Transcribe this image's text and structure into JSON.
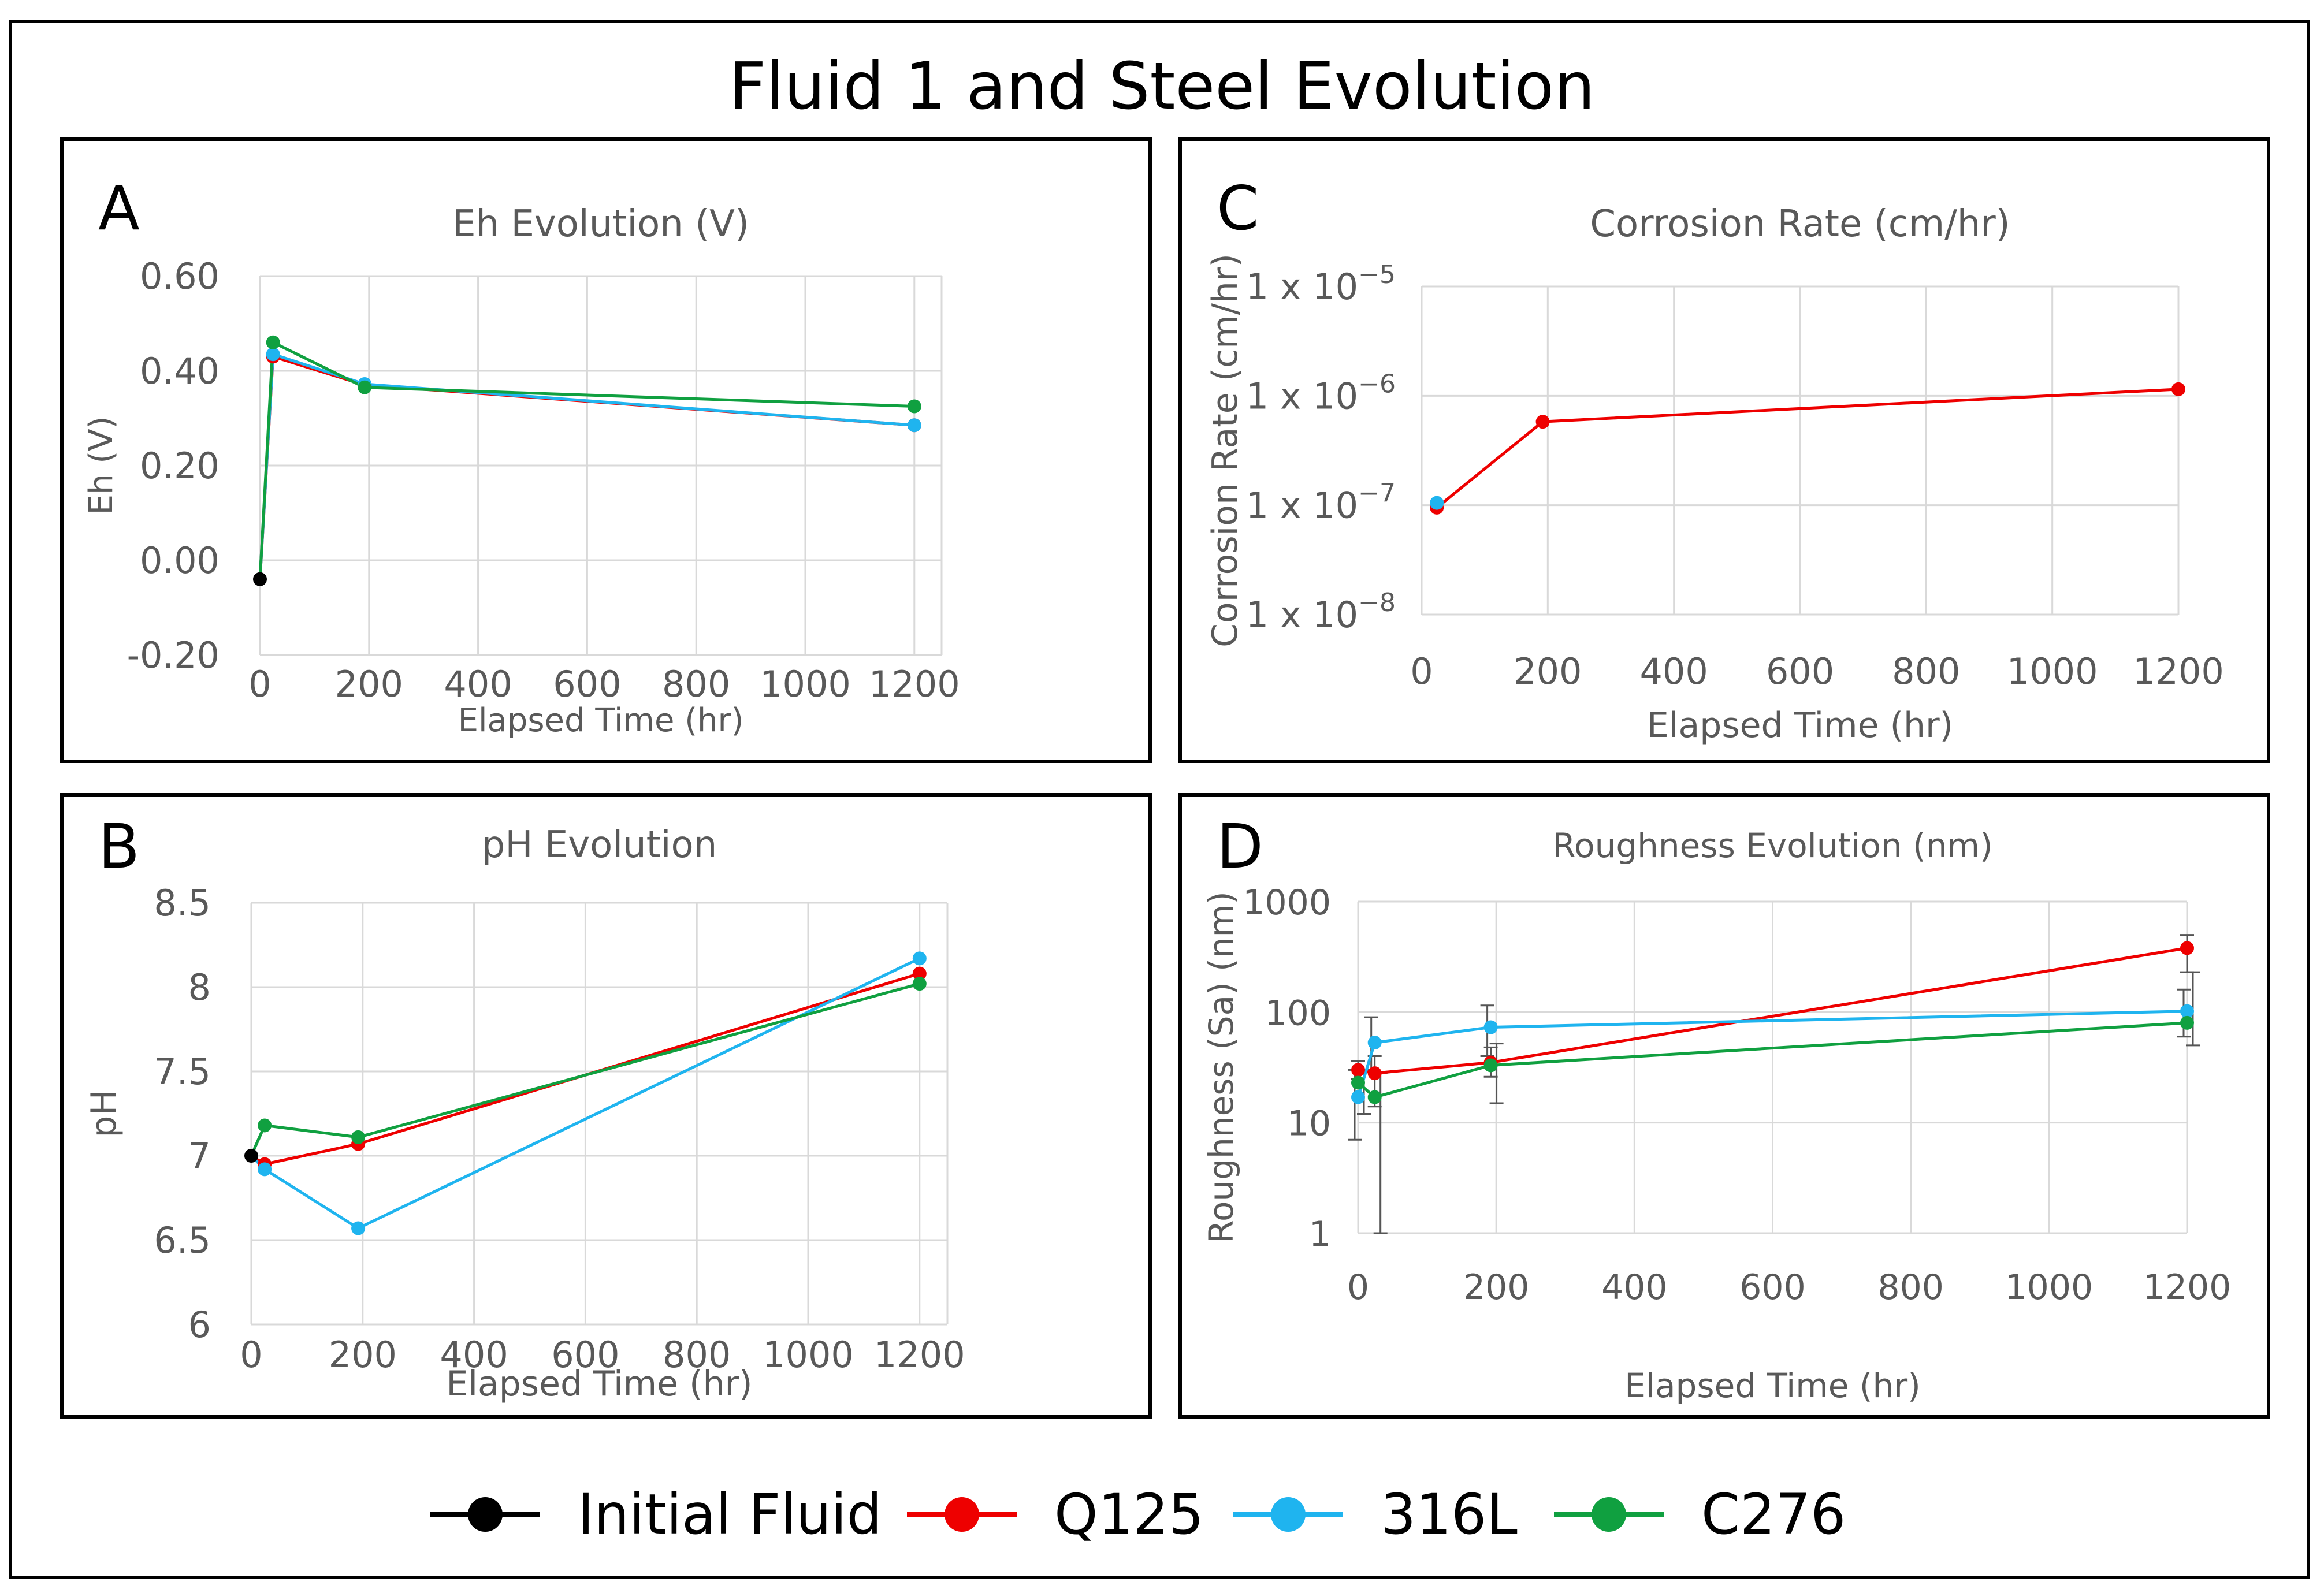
{
  "title": "Fluid 1 and Steel Evolution",
  "colors": {
    "initial": "#000000",
    "q125": "#ee0000",
    "l316": "#1fb4ef",
    "c276": "#10a040",
    "grid": "#d9d9d9",
    "axis_text": "#595959"
  },
  "legend": [
    {
      "label": "Initial Fluid",
      "color": "#000000"
    },
    {
      "label": "Q125",
      "color": "#ee0000"
    },
    {
      "label": "316L",
      "color": "#1fb4ef"
    },
    {
      "label": "C276",
      "color": "#10a040"
    }
  ],
  "chart_data": [
    {
      "id": "A",
      "panel_letter": "A",
      "type": "line",
      "title": "Eh Evolution (V)",
      "xlabel": "Elapsed Time (hr)",
      "ylabel": "Eh (V)",
      "scale": "linear",
      "xlim": [
        0,
        1250
      ],
      "ylim": [
        -0.2,
        0.6
      ],
      "xticks": [
        0,
        200,
        400,
        600,
        800,
        1000,
        1200
      ],
      "xtick_labels": [
        "0",
        "200",
        "400",
        "600",
        "800",
        "1000",
        "1200"
      ],
      "yticks": [
        -0.2,
        0,
        0.2,
        0.4,
        0.6
      ],
      "ytick_labels": [
        "-0.20",
        "0.00",
        "0.20",
        "0.40",
        "0.60"
      ],
      "series": [
        {
          "name": "Initial Fluid",
          "color": "#000000",
          "x": [
            0
          ],
          "y": [
            -0.04
          ]
        },
        {
          "name": "Q125",
          "color": "#ee0000",
          "x": [
            0,
            24,
            192,
            1200
          ],
          "y": [
            -0.04,
            0.43,
            0.37,
            0.285
          ]
        },
        {
          "name": "316L",
          "color": "#1fb4ef",
          "x": [
            0,
            24,
            192,
            1200
          ],
          "y": [
            -0.04,
            0.435,
            0.372,
            0.285
          ]
        },
        {
          "name": "C276",
          "color": "#10a040",
          "x": [
            0,
            24,
            192,
            1200
          ],
          "y": [
            -0.04,
            0.46,
            0.365,
            0.325
          ]
        }
      ]
    },
    {
      "id": "B",
      "panel_letter": "B",
      "type": "line",
      "title": "pH Evolution",
      "xlabel": "Elapsed Time (hr)",
      "ylabel": "pH",
      "scale": "linear",
      "xlim": [
        0,
        1250
      ],
      "ylim": [
        6,
        8.5
      ],
      "xticks": [
        0,
        200,
        400,
        600,
        800,
        1000,
        1200
      ],
      "xtick_labels": [
        "0",
        "200",
        "400",
        "600",
        "800",
        "1000",
        "1200"
      ],
      "yticks": [
        6,
        6.5,
        7,
        7.5,
        8,
        8.5
      ],
      "ytick_labels": [
        "6",
        "6.5",
        "7",
        "7.5",
        "8",
        "8.5"
      ],
      "series": [
        {
          "name": "Initial Fluid",
          "color": "#000000",
          "x": [
            0
          ],
          "y": [
            7.0
          ]
        },
        {
          "name": "Q125",
          "color": "#ee0000",
          "x": [
            0,
            24,
            192,
            1200
          ],
          "y": [
            7.0,
            6.95,
            7.07,
            8.08
          ]
        },
        {
          "name": "316L",
          "color": "#1fb4ef",
          "x": [
            0,
            24,
            192,
            1200
          ],
          "y": [
            7.0,
            6.92,
            6.57,
            8.17
          ]
        },
        {
          "name": "C276",
          "color": "#10a040",
          "x": [
            0,
            24,
            192,
            1200
          ],
          "y": [
            7.0,
            7.18,
            7.11,
            8.02
          ]
        }
      ]
    },
    {
      "id": "C",
      "panel_letter": "C",
      "type": "line",
      "title": "Corrosion Rate (cm/hr)",
      "xlabel": "Elapsed Time (hr)",
      "ylabel": "Corrosion Rate (cm/hr)",
      "scale": "log",
      "xlim": [
        0,
        1200
      ],
      "ylim": [
        1e-08,
        1e-05
      ],
      "xticks": [
        0,
        200,
        400,
        600,
        800,
        1000,
        1200
      ],
      "xtick_labels": [
        "0",
        "200",
        "400",
        "600",
        "800",
        "1000",
        "1200"
      ],
      "yticks": [
        1e-08,
        1e-07,
        1e-06,
        1e-05
      ],
      "ytick_bases": [
        "1 x 10",
        "1 x 10",
        "1 x 10",
        "1 x 10"
      ],
      "ytick_exps": [
        "−8",
        "−7",
        "−6",
        "−5"
      ],
      "series": [
        {
          "name": "Q125",
          "color": "#ee0000",
          "x": [
            24,
            192,
            1200
          ],
          "y": [
            9.5e-08,
            5.8e-07,
            1.15e-06
          ]
        },
        {
          "name": "316L",
          "color": "#1fb4ef",
          "x": [
            24
          ],
          "y": [
            1.05e-07
          ]
        }
      ]
    },
    {
      "id": "D",
      "panel_letter": "D",
      "type": "line",
      "title": "Roughness Evolution (nm)",
      "xlabel": "Elapsed Time (hr)",
      "ylabel": "Roughness (Sa) (nm)",
      "scale": "log",
      "xlim": [
        0,
        1200
      ],
      "ylim": [
        1,
        1000
      ],
      "xticks": [
        0,
        200,
        400,
        600,
        800,
        1000,
        1200
      ],
      "xtick_labels": [
        "0",
        "200",
        "400",
        "600",
        "800",
        "1000",
        "1200"
      ],
      "yticks": [
        1,
        10,
        100,
        1000
      ],
      "ytick_labels": [
        "1",
        "10",
        "100",
        "1000"
      ],
      "series": [
        {
          "name": "Q125",
          "color": "#ee0000",
          "x": [
            0,
            24,
            192,
            1200
          ],
          "y": [
            30,
            28,
            35,
            380
          ],
          "err_lo": [
            25,
            14,
            26,
            230
          ],
          "err_hi": [
            36,
            40,
            48,
            500
          ]
        },
        {
          "name": "316L",
          "color": "#1fb4ef",
          "x": [
            0,
            24,
            192,
            1200
          ],
          "y": [
            17,
            53,
            73,
            102
          ],
          "err_lo": [
            7,
            30,
            40,
            60
          ],
          "err_hi": [
            30,
            90,
            115,
            160
          ]
        },
        {
          "name": "C276",
          "color": "#10a040",
          "x": [
            0,
            24,
            192,
            1200
          ],
          "y": [
            23,
            17,
            33,
            80
          ],
          "err_lo": [
            12,
            1,
            15,
            50
          ],
          "err_hi": [
            30,
            28,
            52,
            230
          ]
        }
      ]
    }
  ]
}
